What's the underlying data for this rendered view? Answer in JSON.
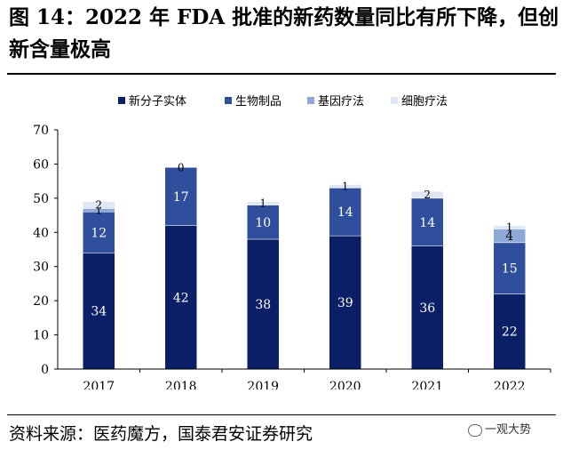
{
  "header": {
    "title": "图 14：2022 年 FDA 批准的新药数量同比有所下降，但创新含量极高"
  },
  "footer": {
    "source": "资料来源：医药魔方，国泰君安证券研究",
    "watermark": "一观大势"
  },
  "chart_data": {
    "type": "bar",
    "stacked": true,
    "title": "",
    "xlabel": "",
    "ylabel": "",
    "ylim": [
      0,
      70
    ],
    "yticks": [
      0,
      10,
      20,
      30,
      40,
      50,
      60,
      70
    ],
    "categories": [
      "2017",
      "2018",
      "2019",
      "2020",
      "2021",
      "2022"
    ],
    "legend_position": "top",
    "series": [
      {
        "name": "新分子实体",
        "color": "#0a1f66",
        "label_color": "#ffffff",
        "values": [
          34,
          42,
          38,
          39,
          36,
          22
        ]
      },
      {
        "name": "生物制品",
        "color": "#2f4f9c",
        "label_color": "#ffffff",
        "values": [
          12,
          17,
          10,
          14,
          14,
          15
        ]
      },
      {
        "name": "基因疗法",
        "color": "#8ea9d8",
        "label_color": "#000000",
        "values": [
          1,
          0,
          0,
          0,
          0,
          4
        ]
      },
      {
        "name": "细胞疗法",
        "color": "#dfe7f4",
        "label_color": "#000000",
        "values": [
          2,
          0,
          1,
          1,
          2,
          1
        ]
      }
    ],
    "data_labels": [
      [
        "34",
        "12",
        "1",
        "2"
      ],
      [
        "42",
        "17",
        "",
        "0"
      ],
      [
        "38",
        "10",
        "",
        "1"
      ],
      [
        "39",
        "14",
        "",
        "1"
      ],
      [
        "36",
        "14",
        "",
        "2"
      ],
      [
        "22",
        "15",
        "4",
        "1"
      ]
    ]
  }
}
